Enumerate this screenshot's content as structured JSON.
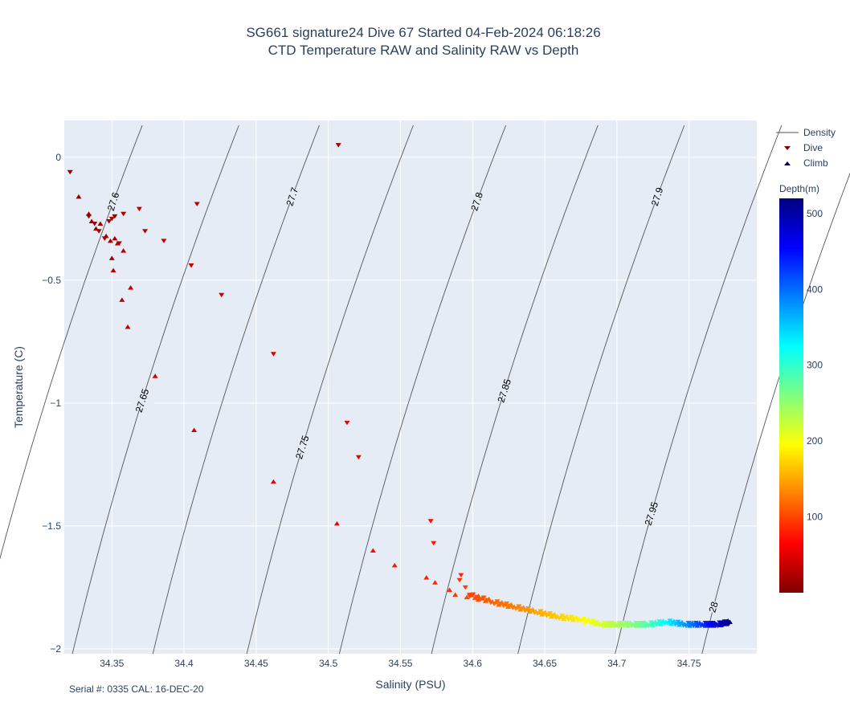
{
  "title": {
    "line1": "SG661 signature24 Dive 67 Started 04-Feb-2024 06:18:26",
    "line2": "CTD Temperature RAW and Salinity RAW vs Depth"
  },
  "footer": "Serial #: 0335  CAL: 16-DEC-20",
  "legend": {
    "density": "Density",
    "dive": "Dive",
    "climb": "Climb"
  },
  "colorbar": {
    "title": "Depth(m)",
    "ticks": [
      "100",
      "200",
      "300",
      "400",
      "500"
    ],
    "tick_values": [
      100,
      200,
      300,
      400,
      500
    ],
    "range": [
      0,
      520
    ],
    "colorscale": [
      "#800000",
      "#ff0000",
      "#ff8000",
      "#ffff00",
      "#80ff80",
      "#00ffff",
      "#0080ff",
      "#0000ff",
      "#000080"
    ]
  },
  "chart_data": {
    "type": "scatter",
    "xlabel": "Salinity (PSU)",
    "ylabel": "Temperature (C)",
    "xlim": [
      34.317,
      34.797
    ],
    "ylim": [
      -2.02,
      0.15
    ],
    "x_ticks": [
      "34.35",
      "34.4",
      "34.45",
      "34.5",
      "34.55",
      "34.6",
      "34.65",
      "34.7",
      "34.75"
    ],
    "x_tick_values": [
      34.35,
      34.4,
      34.45,
      34.5,
      34.55,
      34.6,
      34.65,
      34.7,
      34.75
    ],
    "y_ticks": [
      "0",
      "−0.5",
      "−1",
      "−1.5",
      "−2"
    ],
    "y_tick_values": [
      0,
      -0.5,
      -1,
      -1.5,
      -2
    ],
    "background": "#e5ecf6",
    "grid": true,
    "density_contours": [
      {
        "label": "27.6",
        "label_s": 34.351,
        "label_t": -0.18
      },
      {
        "label": "27.65",
        "label_s": 34.371,
        "label_t": -0.99
      },
      {
        "label": "27.7",
        "label_s": 34.475,
        "label_t": -0.16
      },
      {
        "label": "27.75",
        "label_s": 34.482,
        "label_t": -1.18
      },
      {
        "label": "27.8",
        "label_s": 34.603,
        "label_t": -0.18
      },
      {
        "label": "27.85",
        "label_s": 34.622,
        "label_t": -0.95
      },
      {
        "label": "27.9",
        "label_s": 34.728,
        "label_t": -0.16
      },
      {
        "label": "27.95",
        "label_s": 34.724,
        "label_t": -1.45
      },
      {
        "label": "28",
        "label_s": 34.767,
        "label_t": -1.83
      }
    ],
    "series": [
      {
        "name": "Dive",
        "marker": "triangle-down",
        "points": [
          [
            34.321,
            -0.06,
            10
          ],
          [
            34.334,
            -0.24,
            12
          ],
          [
            34.338,
            -0.27,
            15
          ],
          [
            34.341,
            -0.3,
            14
          ],
          [
            34.345,
            -0.33,
            18
          ],
          [
            34.348,
            -0.26,
            20
          ],
          [
            34.35,
            -0.25,
            22
          ],
          [
            34.352,
            -0.24,
            16
          ],
          [
            34.355,
            -0.35,
            25
          ],
          [
            34.358,
            -0.23,
            24
          ],
          [
            34.369,
            -0.21,
            30
          ],
          [
            34.373,
            -0.3,
            28
          ],
          [
            34.386,
            -0.34,
            35
          ],
          [
            34.409,
            -0.19,
            32
          ],
          [
            34.405,
            -0.44,
            38
          ],
          [
            34.426,
            -0.56,
            40
          ],
          [
            34.462,
            -0.8,
            45
          ],
          [
            34.507,
            0.05,
            20
          ],
          [
            34.513,
            -1.08,
            55
          ],
          [
            34.521,
            -1.22,
            60
          ],
          [
            34.571,
            -1.48,
            70
          ],
          [
            34.573,
            -1.57,
            75
          ],
          [
            34.592,
            -1.7,
            85
          ],
          [
            34.591,
            -1.72,
            90
          ],
          [
            34.595,
            -1.75,
            95
          ],
          [
            34.598,
            -1.78,
            100
          ]
        ]
      },
      {
        "name": "Climb",
        "marker": "triangle-up",
        "points": [
          [
            34.327,
            -0.16,
            10
          ],
          [
            34.334,
            -0.23,
            12
          ],
          [
            34.336,
            -0.26,
            15
          ],
          [
            34.339,
            -0.29,
            14
          ],
          [
            34.342,
            -0.27,
            16
          ],
          [
            34.346,
            -0.32,
            18
          ],
          [
            34.349,
            -0.34,
            20
          ],
          [
            34.35,
            -0.41,
            22
          ],
          [
            34.352,
            -0.33,
            24
          ],
          [
            34.354,
            -0.35,
            25
          ],
          [
            34.358,
            -0.38,
            26
          ],
          [
            34.351,
            -0.46,
            28
          ],
          [
            34.357,
            -0.58,
            30
          ],
          [
            34.361,
            -0.69,
            32
          ],
          [
            34.363,
            -0.53,
            34
          ],
          [
            34.38,
            -0.89,
            40
          ],
          [
            34.407,
            -1.11,
            45
          ],
          [
            34.462,
            -1.32,
            55
          ],
          [
            34.506,
            -1.49,
            60
          ],
          [
            34.531,
            -1.6,
            70
          ],
          [
            34.546,
            -1.66,
            75
          ],
          [
            34.568,
            -1.71,
            80
          ],
          [
            34.574,
            -1.73,
            85
          ],
          [
            34.584,
            -1.76,
            90
          ],
          [
            34.588,
            -1.78,
            95
          ],
          [
            34.596,
            -1.79,
            100
          ],
          [
            34.604,
            -1.8,
            105
          ]
        ]
      }
    ],
    "dense_profile": {
      "name": "Dive/Climb deep segment",
      "path": [
        [
          34.598,
          -1.78,
          100
        ],
        [
          34.615,
          -1.81,
          115
        ],
        [
          34.63,
          -1.83,
          130
        ],
        [
          34.645,
          -1.85,
          150
        ],
        [
          34.66,
          -1.87,
          170
        ],
        [
          34.675,
          -1.88,
          190
        ],
        [
          34.69,
          -1.9,
          215
        ],
        [
          34.7,
          -1.9,
          235
        ],
        [
          34.712,
          -1.9,
          260
        ],
        [
          34.722,
          -1.9,
          285
        ],
        [
          34.735,
          -1.89,
          330
        ],
        [
          34.748,
          -1.9,
          380
        ],
        [
          34.76,
          -1.9,
          430
        ],
        [
          34.77,
          -1.9,
          480
        ],
        [
          34.779,
          -1.89,
          520
        ]
      ]
    }
  }
}
